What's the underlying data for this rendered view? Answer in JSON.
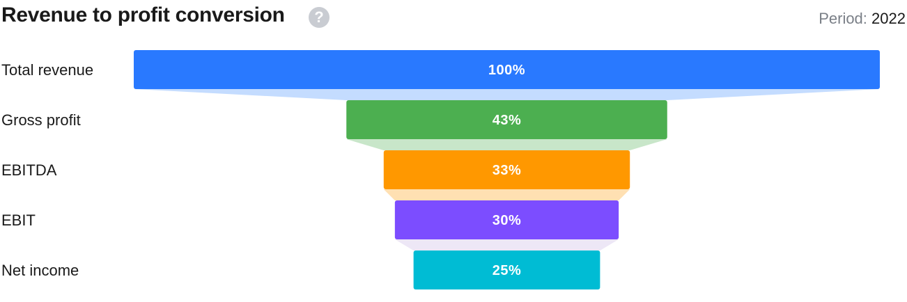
{
  "header": {
    "title": "Revenue to profit conversion",
    "help_icon": "question-circle-icon",
    "period_label": "Period:",
    "period_value": "2022"
  },
  "chart_data": {
    "type": "funnel",
    "title": "Revenue to profit conversion",
    "categories": [
      "Total revenue",
      "Gross profit",
      "EBITDA",
      "EBIT",
      "Net income"
    ],
    "values": [
      100,
      43,
      33,
      30,
      25
    ],
    "value_labels": [
      "100%",
      "43%",
      "33%",
      "30%",
      "25%"
    ],
    "colors": [
      "#2979ff",
      "#4caf50",
      "#ff9800",
      "#7c4dff",
      "#00bcd4"
    ],
    "connector_colors": [
      "#c4dcff",
      "#c8e6c9",
      "#ffe0b2",
      "#ede7f6"
    ],
    "unit": "%"
  }
}
